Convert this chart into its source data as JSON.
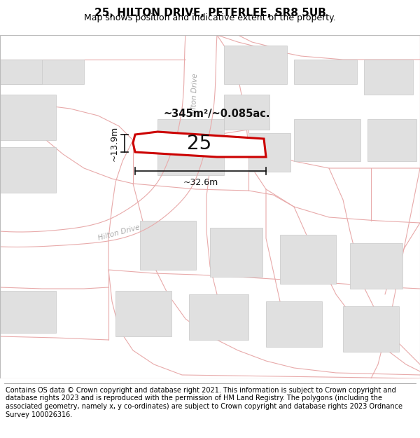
{
  "title": "25, HILTON DRIVE, PETERLEE, SR8 5UB",
  "subtitle": "Map shows position and indicative extent of the property.",
  "footer": "Contains OS data © Crown copyright and database right 2021. This information is subject to Crown copyright and database rights 2023 and is reproduced with the permission of HM Land Registry. The polygons (including the associated geometry, namely x, y co-ordinates) are subject to Crown copyright and database rights 2023 Ordnance Survey 100026316.",
  "area_label": "~345m²/~0.085ac.",
  "number_label": "25",
  "width_label": "~32.6m",
  "height_label": "~13.9m",
  "bg_color": "#ffffff",
  "map_bg": "#f7f7f7",
  "road_line_color": "#e8aaaa",
  "building_color": "#e0e0e0",
  "building_edge_color": "#c8c8c8",
  "plot_fill": "#ffffff",
  "plot_edge_color": "#cc0000",
  "plot_edge_width": 2.2,
  "hilton_drive_label": "Hilton Drive",
  "title_fontsize": 11,
  "subtitle_fontsize": 9,
  "footer_fontsize": 7,
  "road_lw": 0.8
}
